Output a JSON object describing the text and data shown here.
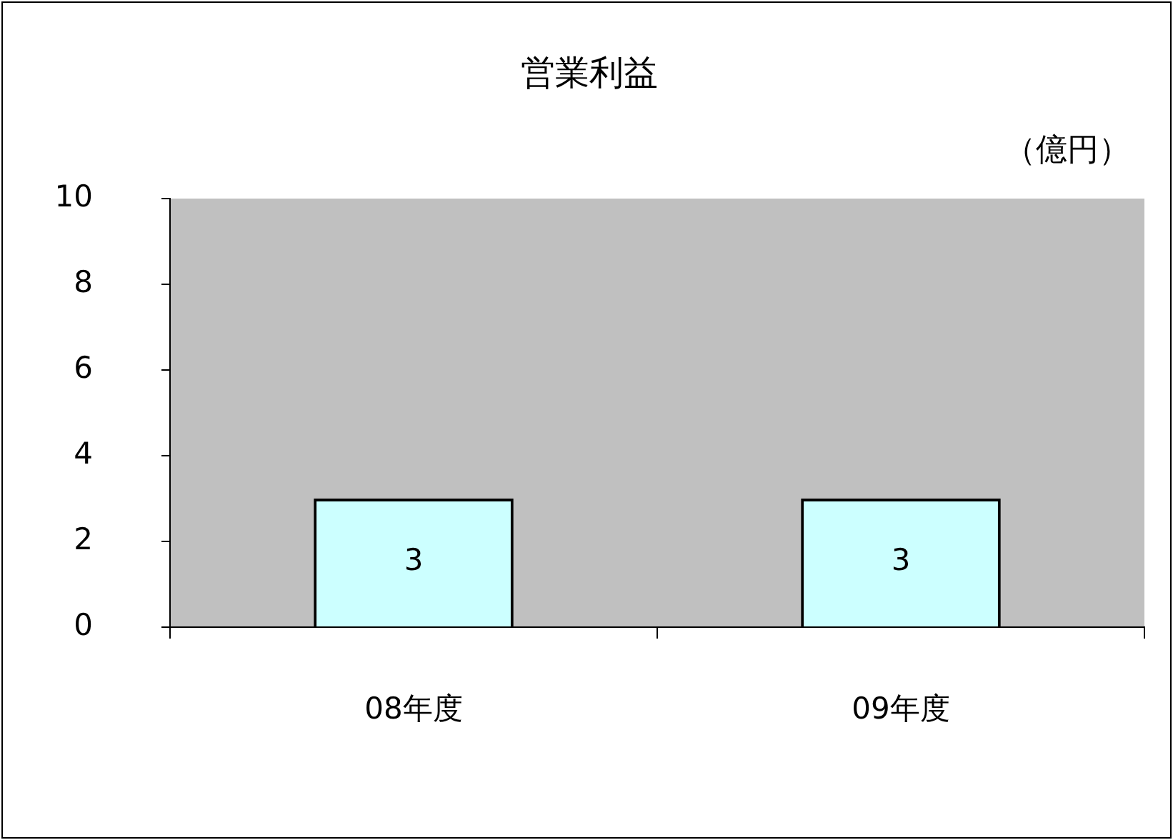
{
  "chart_data": {
    "type": "bar",
    "title": "営業利益",
    "ylabel": "（億円）",
    "categories": [
      "08年度",
      "09年度"
    ],
    "series": [
      {
        "color": "#ccffff",
        "values": [
          3,
          3
        ]
      }
    ],
    "ylim": [
      0,
      10
    ],
    "yticks": [
      0,
      2,
      4,
      6,
      8,
      10
    ],
    "grid": false,
    "legend": false,
    "data_labels": true
  }
}
